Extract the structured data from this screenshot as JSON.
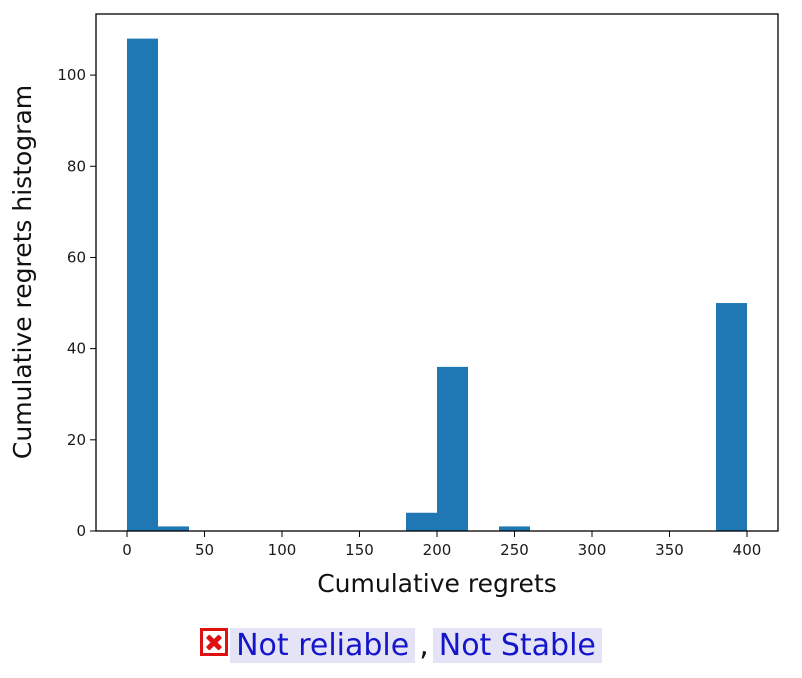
{
  "chart_data": {
    "type": "bar",
    "title": "",
    "xlabel": "Cumulative regrets",
    "ylabel": "Cumulative regrets histogram",
    "xlim": [
      -20,
      420
    ],
    "ylim": [
      0,
      113.4
    ],
    "xticks": [
      0,
      50,
      100,
      150,
      200,
      250,
      300,
      350,
      400
    ],
    "yticks": [
      0,
      20,
      40,
      60,
      80,
      100
    ],
    "bin_edges": [
      0,
      20,
      40,
      60,
      80,
      100,
      120,
      140,
      160,
      180,
      200,
      220,
      240,
      260,
      280,
      300,
      320,
      340,
      360,
      380,
      400
    ],
    "values": [
      108,
      1,
      0,
      0,
      0,
      0,
      0,
      0,
      0,
      4,
      36,
      0,
      1,
      0,
      0,
      0,
      0,
      0,
      0,
      50
    ],
    "bar_color": "#1f77b4",
    "grid": false,
    "legend": "none"
  },
  "caption": {
    "icon": "red-x-box-icon",
    "reliability": "Not reliable",
    "separator": ",",
    "stability": "Not Stable"
  }
}
